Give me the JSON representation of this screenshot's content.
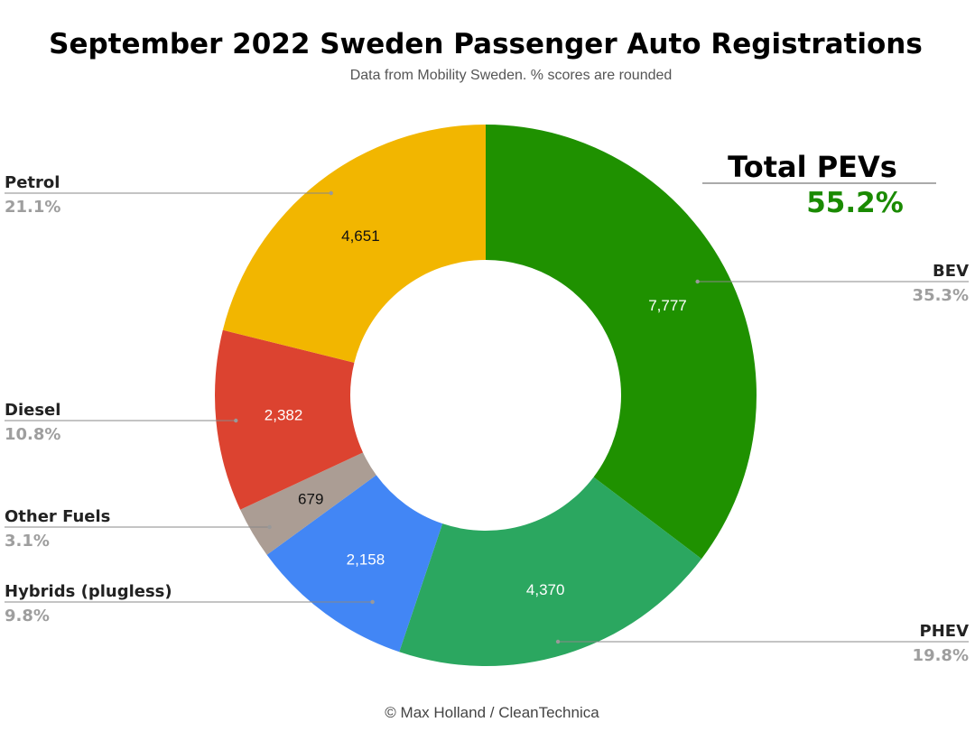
{
  "chart_data": {
    "type": "pie",
    "donut": true,
    "title": "September 2022 Sweden Passenger Auto Registrations",
    "subtitle": "Data from Mobility Sweden. % scores are rounded",
    "credit": "© Max Holland / CleanTechnica",
    "legend": "outside, with leader lines",
    "slices": [
      {
        "label": "BEV",
        "value": 7777,
        "value_label": "7,777",
        "percent": "35.3%",
        "color": "#1f9100",
        "text_color": "#ffffff"
      },
      {
        "label": "PHEV",
        "value": 4370,
        "value_label": "4,370",
        "percent": "19.8%",
        "color": "#2ba760",
        "text_color": "#ffffff"
      },
      {
        "label": "Hybrids (plugless)",
        "value": 2158,
        "value_label": "2,158",
        "percent": "9.8%",
        "color": "#4286f5",
        "text_color": "#ffffff"
      },
      {
        "label": "Other Fuels",
        "value": 679,
        "value_label": "679",
        "percent": "3.1%",
        "color": "#ab9d94",
        "text_color": "#111111"
      },
      {
        "label": "Diesel",
        "value": 2382,
        "value_label": "2,382",
        "percent": "10.8%",
        "color": "#dc4330",
        "text_color": "#ffffff"
      },
      {
        "label": "Petrol",
        "value": 4651,
        "value_label": "4,651",
        "percent": "21.1%",
        "color": "#f2b600",
        "text_color": "#111111"
      }
    ],
    "annotation": {
      "label": "Total PEVs",
      "value": "55.2%",
      "color": "#1a8a00"
    }
  }
}
